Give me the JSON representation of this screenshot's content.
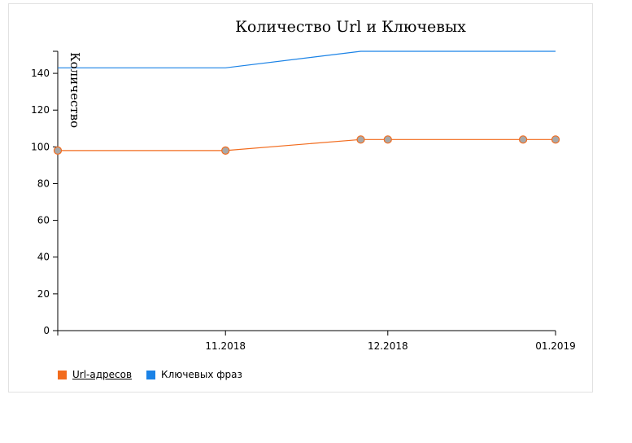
{
  "chart_data": {
    "type": "line",
    "title": "Количество Url и Ключевых",
    "xlabel": "",
    "ylabel": "Количество",
    "ylim": [
      0,
      152
    ],
    "yticks": [
      0,
      20,
      40,
      60,
      80,
      100,
      120,
      140
    ],
    "x": [
      "2018-10-01",
      "2018-11-01",
      "2018-11-26",
      "2018-12-01",
      "2018-12-26",
      "2019-01-01"
    ],
    "xticks": [
      {
        "value": "2018-11-01",
        "label": "11.2018"
      },
      {
        "value": "2018-12-01",
        "label": "12.2018"
      },
      {
        "value": "2019-01-01",
        "label": "01.2019"
      }
    ],
    "series": [
      {
        "name": "Url-адресов",
        "color": "#f26b1d",
        "marker_fill": "#a8a8a8",
        "markers": true,
        "values": [
          98,
          98,
          104,
          104,
          104,
          104
        ]
      },
      {
        "name": "Ключевых фраз",
        "color": "#1a82e6",
        "markers": false,
        "values": [
          143,
          143,
          152,
          152,
          152,
          152
        ]
      }
    ],
    "grid": false,
    "legend": "bottom-left"
  }
}
